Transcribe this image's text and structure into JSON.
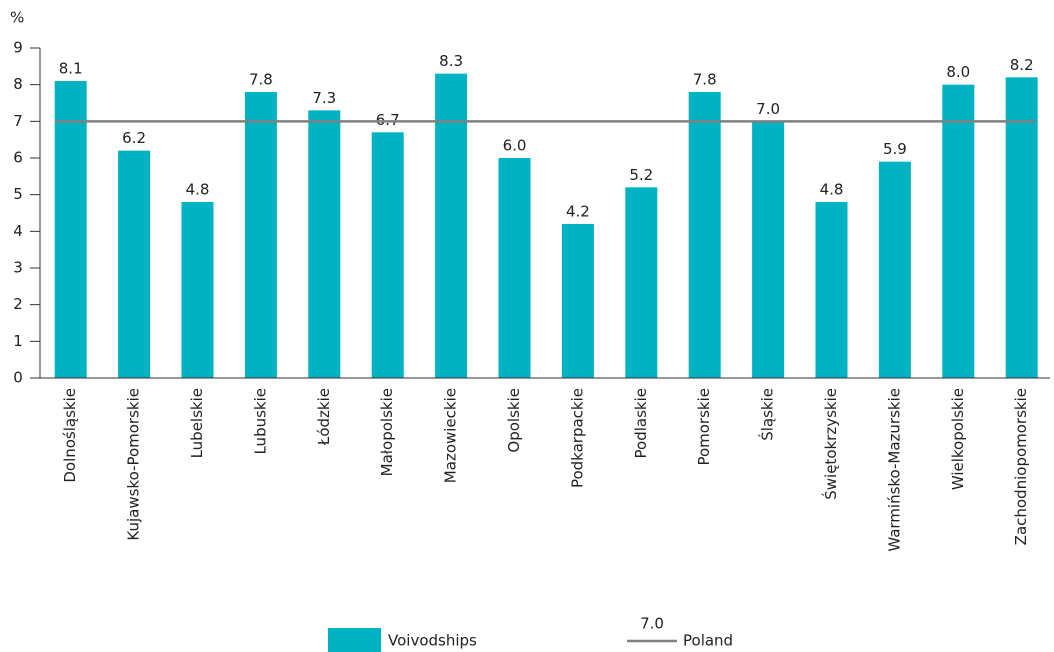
{
  "chart_data": {
    "type": "bar",
    "y_axis_label": "%",
    "categories": [
      "Dolnośląskie",
      "Kujawsko-Pomorskie",
      "Lubelskie",
      "Lubuskie",
      "Łódzkie",
      "Małopolskie",
      "Mazowieckie",
      "Opolskie",
      "Podkarpackie",
      "Podlaskie",
      "Pomorskie",
      "Śląskie",
      "Świętokrzyskie",
      "Warmińsko-Mazurskie",
      "Wielkopolskie",
      "Zachodniopomorskie"
    ],
    "series": [
      {
        "name": "Voivodships",
        "color": "#00b2c2",
        "values": [
          8.1,
          6.2,
          4.8,
          7.8,
          7.3,
          6.7,
          8.3,
          6,
          4.2,
          5.2,
          7.8,
          7,
          4.8,
          5.9,
          8,
          8.2
        ],
        "value_labels": [
          "8.1",
          "6.2",
          "4.8",
          "7.8",
          "7.3",
          "6.7",
          "8.3",
          "6.0",
          "4.2",
          "5.2",
          "7.8",
          "7.0",
          "4.8",
          "5.9",
          "8.0",
          "8.2"
        ]
      }
    ],
    "reference_line": {
      "name": "Poland",
      "value": 7,
      "label": "7.0",
      "color": "#808080"
    },
    "ylim": [
      0,
      9
    ],
    "yticks": [
      0,
      1,
      2,
      3,
      4,
      5,
      6,
      7,
      8,
      9
    ]
  }
}
